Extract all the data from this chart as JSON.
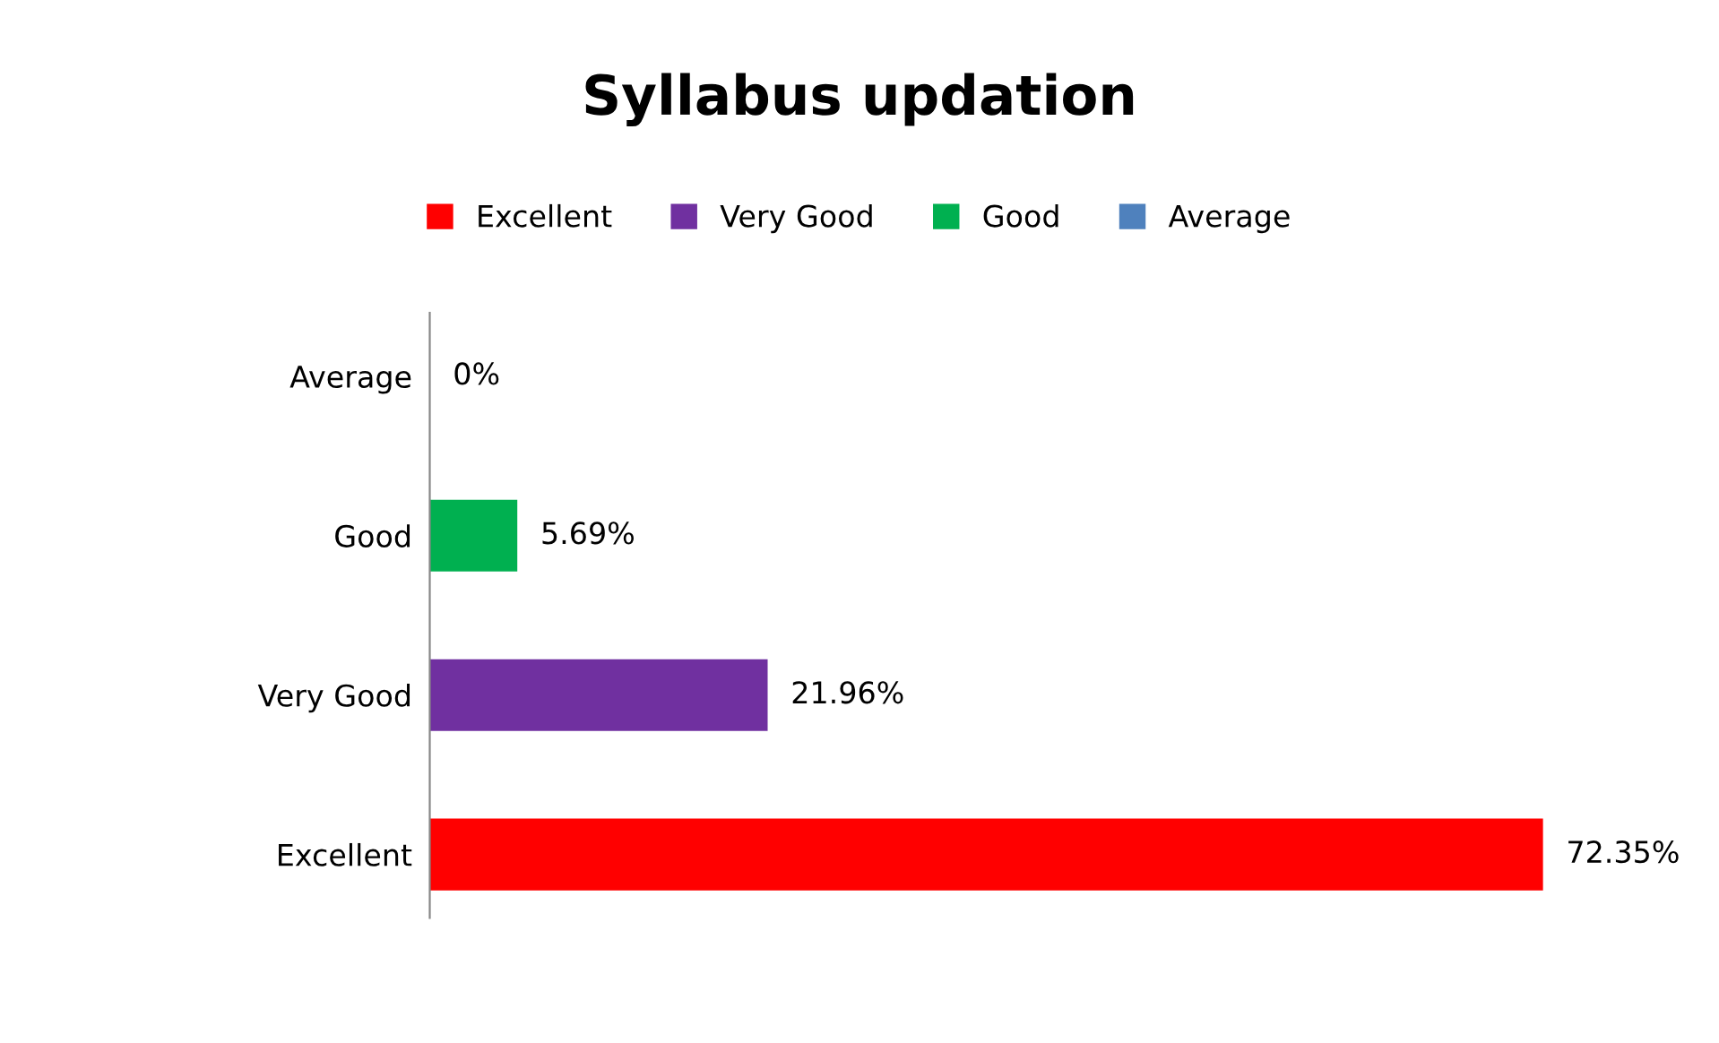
{
  "chart_data": {
    "type": "bar",
    "orientation": "horizontal",
    "title": "Syllabus updation",
    "categories": [
      "Average",
      "Good",
      "Very Good",
      "Excellent"
    ],
    "series": [
      {
        "name": "Excellent",
        "color": "#ff0000",
        "values": [
          null,
          null,
          null,
          72.35
        ],
        "value_labels": [
          null,
          null,
          null,
          "72.35%"
        ]
      },
      {
        "name": "Very Good",
        "color": "#7030a0",
        "values": [
          null,
          null,
          21.96,
          null
        ],
        "value_labels": [
          null,
          null,
          "21.96%",
          null
        ]
      },
      {
        "name": "Good",
        "color": "#00b050",
        "values": [
          null,
          5.69,
          null,
          null
        ],
        "value_labels": [
          null,
          "5.69%",
          null,
          null
        ]
      },
      {
        "name": "Average",
        "color": "#4f81bd",
        "values": [
          0,
          null,
          null,
          null
        ],
        "value_labels": [
          "0%",
          null,
          null,
          null
        ]
      }
    ],
    "tick_labels": "y",
    "grid": false,
    "legend": "top"
  }
}
